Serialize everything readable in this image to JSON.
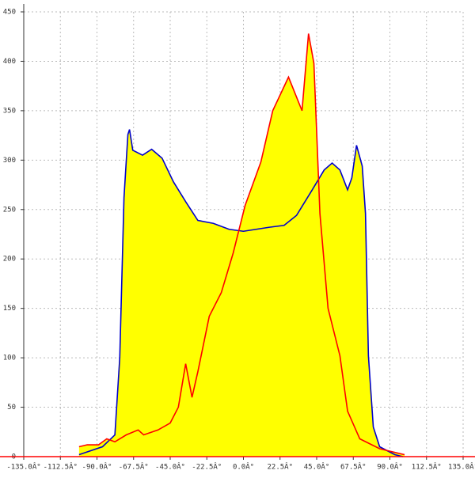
{
  "chart_data": {
    "type": "area",
    "xlim": [
      -135,
      135
    ],
    "ylim": [
      0,
      450
    ],
    "xticks": [
      {
        "value": -135,
        "label": "-135.0Â°"
      },
      {
        "value": -112.5,
        "label": "-112.5Â°"
      },
      {
        "value": -90,
        "label": "-90.0Â°"
      },
      {
        "value": -67.5,
        "label": "-67.5Â°"
      },
      {
        "value": -45,
        "label": "-45.0Â°"
      },
      {
        "value": -22.5,
        "label": "-22.5Â°"
      },
      {
        "value": 0,
        "label": "0.0Â°"
      },
      {
        "value": 22.5,
        "label": "22.5Â°"
      },
      {
        "value": 45,
        "label": "45.0Â°"
      },
      {
        "value": 67.5,
        "label": "67.5Â°"
      },
      {
        "value": 90,
        "label": "90.0Â°"
      },
      {
        "value": 112.5,
        "label": "112.5Â°"
      },
      {
        "value": 135,
        "label": "135.0Â°"
      }
    ],
    "yticks": [
      0,
      50,
      100,
      150,
      200,
      250,
      300,
      350,
      400,
      450
    ],
    "grid": true,
    "fill_color": "#ffff00",
    "series": [
      {
        "color": "#0000cc",
        "x": [
          -101,
          -86.6,
          -79,
          -76,
          -73.4,
          -71,
          -70,
          -68,
          -62,
          -56.4,
          -50,
          -43,
          -35.5,
          -28,
          -18.5,
          -8.8,
          0,
          15.6,
          25,
          32.6,
          42.3,
          49.6,
          54.5,
          59.3,
          64,
          66.6,
          69.5,
          73,
          75,
          76.8,
          79.8,
          83.7,
          93,
          98
        ],
        "values": [
          2,
          10,
          22,
          100,
          262,
          326,
          331,
          310,
          305,
          311,
          302,
          278,
          258,
          239,
          236,
          230,
          228,
          232,
          234,
          244,
          270,
          290,
          297,
          290,
          270,
          282,
          315,
          294,
          246,
          102,
          30,
          10,
          2,
          0
        ]
      },
      {
        "color": "#ff0000",
        "x": [
          -101,
          -96,
          -89,
          -84,
          -79,
          -72,
          -64.7,
          -61.3,
          -52.5,
          -45,
          -40,
          -35.5,
          -31.6,
          -28,
          -21,
          -13.6,
          -6.3,
          1,
          10.7,
          18,
          27.7,
          36,
          40,
          43.3,
          47,
          52,
          59.3,
          64,
          71.5,
          83.7,
          99
        ],
        "values": [
          10,
          12,
          12,
          18,
          15,
          22,
          27,
          22,
          27,
          34,
          50,
          94,
          60,
          86,
          142,
          166,
          206,
          254,
          298,
          350,
          384,
          350,
          428,
          398,
          246,
          150,
          102,
          46,
          18,
          8,
          2
        ]
      }
    ]
  }
}
